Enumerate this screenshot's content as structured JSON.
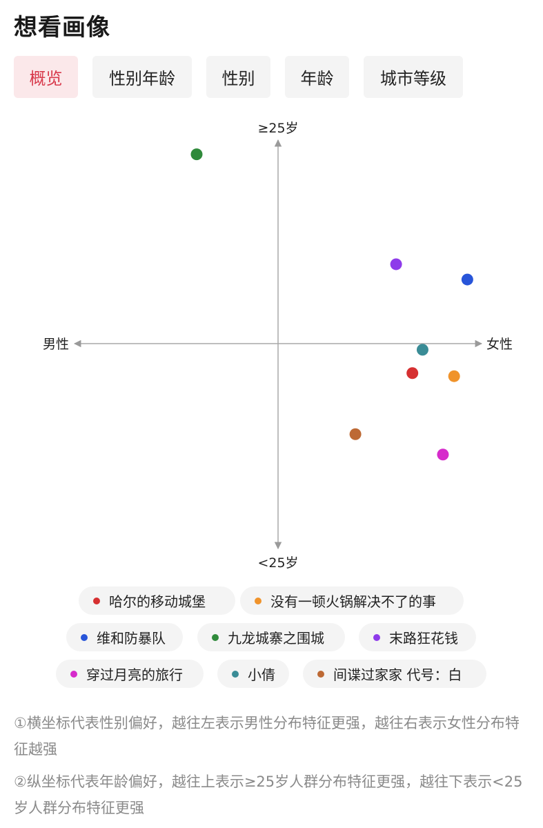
{
  "page": {
    "title": "想看画像"
  },
  "tabs": [
    {
      "label": "概览",
      "active": true
    },
    {
      "label": "性别年龄",
      "active": false
    },
    {
      "label": "性别",
      "active": false
    },
    {
      "label": "年龄",
      "active": false
    },
    {
      "label": "城市等级",
      "active": false
    }
  ],
  "chart_data": {
    "type": "scatter",
    "title": "",
    "axes": {
      "x_left_label": "男性",
      "x_right_label": "女性",
      "y_top_label": "≥25岁",
      "y_bottom_label": "<25岁"
    },
    "xlim": [
      -1,
      1
    ],
    "ylim": [
      -1,
      1
    ],
    "grid": false,
    "legend_position": "bottom",
    "series": [
      {
        "name": "哈尔的移动城堡",
        "color": "#d63031",
        "x": 0.66,
        "y": -0.145
      },
      {
        "name": "没有一顿火锅解决不了的事",
        "color": "#f0932b",
        "x": 0.865,
        "y": -0.16
      },
      {
        "name": "维和防暴队",
        "color": "#2855d9",
        "x": 0.93,
        "y": 0.315
      },
      {
        "name": "九龙城寨之围城",
        "color": "#2f8a3b",
        "x": -0.4,
        "y": 0.93
      },
      {
        "name": "末路狂花钱",
        "color": "#8e3bea",
        "x": 0.58,
        "y": 0.39
      },
      {
        "name": "穿过月亮的旅行",
        "color": "#d62bcb",
        "x": 0.81,
        "y": -0.545
      },
      {
        "name": "小倩",
        "color": "#3a8c96",
        "x": 0.71,
        "y": -0.03
      },
      {
        "name": "间谍过家家 代号：白",
        "color": "#bd6934",
        "x": 0.38,
        "y": -0.445
      }
    ]
  },
  "notes": [
    "①横坐标代表性别偏好，越往左表示男性分布特征更强，越往右表示女性分布特征越强",
    "②纵坐标代表年龄偏好，越往上表示≥25岁人群分布特征更强，越往下表示<25岁人群分布特征更强"
  ]
}
